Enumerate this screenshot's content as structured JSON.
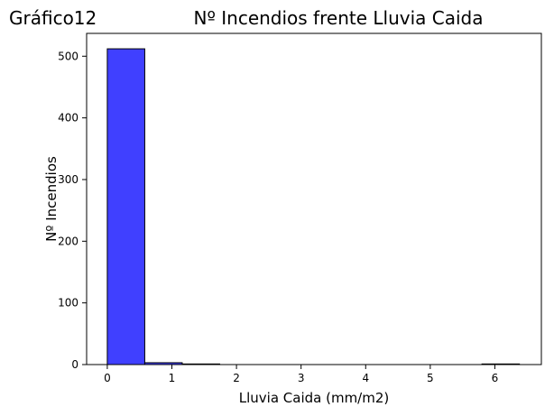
{
  "chart_data": {
    "type": "bar",
    "label": "Gráfico12",
    "title": "Nº Incendios frente Lluvia Caida",
    "xlabel": "Lluvia Caida (mm/m2)",
    "ylabel": "Nº Incendios",
    "xlim": [
      -0.32,
      6.72
    ],
    "ylim": [
      0,
      537
    ],
    "xticks": [
      0,
      1,
      2,
      3,
      4,
      5,
      6
    ],
    "yticks": [
      0,
      100,
      200,
      300,
      400,
      500
    ],
    "bins": [
      {
        "x0": 0.0,
        "x1": 0.58,
        "count": 512
      },
      {
        "x0": 0.58,
        "x1": 1.16,
        "count": 3
      },
      {
        "x0": 1.16,
        "x1": 1.74,
        "count": 1
      },
      {
        "x0": 1.74,
        "x1": 2.32,
        "count": 0
      },
      {
        "x0": 2.32,
        "x1": 2.9,
        "count": 0
      },
      {
        "x0": 2.9,
        "x1": 3.48,
        "count": 0
      },
      {
        "x0": 3.48,
        "x1": 4.06,
        "count": 0
      },
      {
        "x0": 4.06,
        "x1": 4.64,
        "count": 0
      },
      {
        "x0": 4.64,
        "x1": 5.22,
        "count": 0
      },
      {
        "x0": 5.22,
        "x1": 5.8,
        "count": 0
      },
      {
        "x0": 5.8,
        "x1": 6.38,
        "count": 1
      }
    ],
    "bar_color": "#4040ff",
    "edge_color": "#000000",
    "grid": false,
    "legend": "none"
  }
}
